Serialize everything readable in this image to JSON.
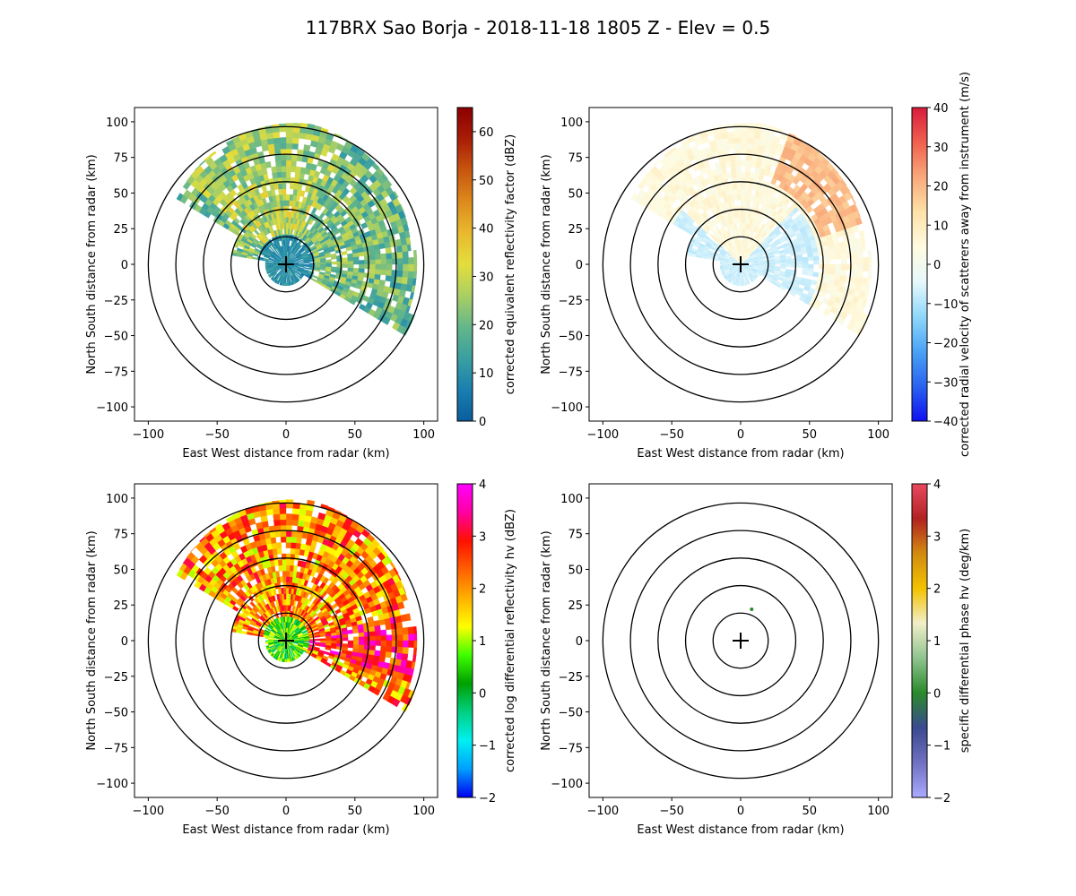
{
  "figure": {
    "title": "117BRX Sao Borja - 2018-11-18 1805 Z -  Elev = 0.5"
  },
  "chart_data": [
    {
      "type": "heatmap",
      "panel": "top-left",
      "field": "reflectivity",
      "xlabel": "East West distance from radar (km)",
      "ylabel": "North South distance from radar (km)",
      "xlim": [
        -110,
        110
      ],
      "ylim": [
        -110,
        110
      ],
      "xticks": [
        -100,
        -50,
        0,
        50,
        100
      ],
      "yticks": [
        -100,
        -75,
        -50,
        -25,
        0,
        25,
        50,
        75,
        100
      ],
      "range_rings_km": [
        20,
        40,
        60,
        80,
        100
      ],
      "colorbar": {
        "label": "corrected equivalent reflectivity factor (dBZ)",
        "min": 0,
        "max": 65,
        "ticks": [
          0,
          10,
          20,
          30,
          40,
          50,
          60
        ],
        "colors": [
          "#0a5d9c",
          "#1a7fb0",
          "#3a9fa0",
          "#64b68a",
          "#a9cf64",
          "#e3de3c",
          "#e8b92d",
          "#dd8a1c",
          "#c7560f",
          "#a81d06",
          "#8b0000"
        ]
      }
    },
    {
      "type": "heatmap",
      "panel": "top-right",
      "field": "velocity",
      "xlabel": "East West distance from radar (km)",
      "ylabel": "North South distance from radar (km)",
      "xlim": [
        -110,
        110
      ],
      "ylim": [
        -110,
        110
      ],
      "xticks": [
        -100,
        -50,
        0,
        50,
        100
      ],
      "yticks": [
        -100,
        -75,
        -50,
        -25,
        0,
        25,
        50,
        75,
        100
      ],
      "range_rings_km": [
        20,
        40,
        60,
        80,
        100
      ],
      "colorbar": {
        "label": "corrected radial velocity of scatterers away from instrument (m/s)",
        "min": -40,
        "max": 40,
        "ticks": [
          -40,
          -30,
          -20,
          -10,
          0,
          10,
          20,
          30,
          40
        ],
        "colors": [
          "#1010f0",
          "#2a63f0",
          "#4aa2f5",
          "#8fd8fa",
          "#e6f8fb",
          "#fffbe0",
          "#fde1a8",
          "#f9a97a",
          "#f0604e",
          "#d81c3c"
        ]
      }
    },
    {
      "type": "heatmap",
      "panel": "bottom-left",
      "field": "differential_reflectivity",
      "xlabel": "East West distance from radar (km)",
      "ylabel": "North South distance from radar (km)",
      "xlim": [
        -110,
        110
      ],
      "ylim": [
        -110,
        110
      ],
      "xticks": [
        -100,
        -50,
        0,
        50,
        100
      ],
      "yticks": [
        -100,
        -75,
        -50,
        -25,
        0,
        25,
        50,
        75,
        100
      ],
      "range_rings_km": [
        20,
        40,
        60,
        80,
        100
      ],
      "colorbar": {
        "label": "corrected log differential reflectivity hv (dBZ)",
        "min": -2,
        "max": 4,
        "ticks": [
          -2,
          -1,
          0,
          1,
          2,
          3,
          4
        ],
        "colors": [
          "#0000f0",
          "#00a0ff",
          "#00f0f0",
          "#00d080",
          "#00a000",
          "#40ff00",
          "#ffff00",
          "#ffb000",
          "#ff6000",
          "#ff1000",
          "#ff00a0",
          "#ff00ff"
        ]
      }
    },
    {
      "type": "heatmap",
      "panel": "bottom-right",
      "field": "specific_differential_phase",
      "xlabel": "East West distance from radar (km)",
      "ylabel": "North South distance from radar (km)",
      "xlim": [
        -110,
        110
      ],
      "ylim": [
        -110,
        110
      ],
      "xticks": [
        -100,
        -50,
        0,
        50,
        100
      ],
      "yticks": [
        -100,
        -75,
        -50,
        -25,
        0,
        25,
        50,
        75,
        100
      ],
      "range_rings_km": [
        20,
        40,
        60,
        80,
        100
      ],
      "colorbar": {
        "label": "specific differential phase hv (deg/km)",
        "min": -2,
        "max": 4,
        "ticks": [
          -2,
          -1,
          0,
          1,
          2,
          3,
          4
        ],
        "colors": [
          "#aaaaff",
          "#7070c0",
          "#3a4a90",
          "#2a8a2a",
          "#8fc48f",
          "#f2eec8",
          "#f2c200",
          "#d28a10",
          "#b22222",
          "#e84a5f"
        ]
      }
    }
  ]
}
